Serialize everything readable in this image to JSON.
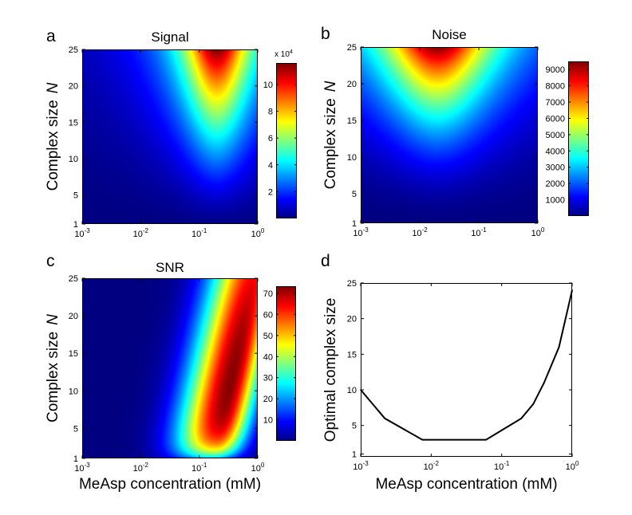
{
  "chart_data": [
    {
      "type": "heatmap",
      "letter": "a",
      "title": "Signal",
      "xlabel": "",
      "ylabel": "Complex size",
      "ylabel_var": "N",
      "x_scale": "log",
      "xlim": [
        0.001,
        1
      ],
      "ylim": [
        1,
        25
      ],
      "x_tick_base": "10",
      "x_tick_exponents": [
        "-3",
        "-2",
        "-1",
        "0"
      ],
      "y_ticks": [
        "1",
        "5",
        "10",
        "15",
        "20",
        "25"
      ],
      "colormap": "jet",
      "colorbar": {
        "range": [
          0,
          116000
        ],
        "ticks": [
          "2",
          "4",
          "6",
          "8",
          "10"
        ],
        "tick_values": [
          20000,
          40000,
          60000,
          80000,
          100000
        ],
        "multiplier_prefix": "x 10",
        "multiplier_exp": "4"
      },
      "peak": {
        "x": 0.2,
        "N": 25,
        "value": 116000
      }
    },
    {
      "type": "heatmap",
      "letter": "b",
      "title": "Noise",
      "xlabel": "",
      "ylabel": "Complex size",
      "ylabel_var": "N",
      "x_scale": "log",
      "xlim": [
        0.001,
        1
      ],
      "ylim": [
        1,
        25
      ],
      "x_tick_base": "10",
      "x_tick_exponents": [
        "-3",
        "-2",
        "-1",
        "0"
      ],
      "y_ticks": [
        "1",
        "5",
        "10",
        "15",
        "20",
        "25"
      ],
      "colormap": "jet",
      "colorbar": {
        "range": [
          0,
          9500
        ],
        "ticks": [
          "1000",
          "2000",
          "3000",
          "4000",
          "5000",
          "6000",
          "7000",
          "8000",
          "9000"
        ],
        "tick_values": [
          1000,
          2000,
          3000,
          4000,
          5000,
          6000,
          7000,
          8000,
          9000
        ]
      },
      "peak": {
        "x": 0.02,
        "N": 25,
        "value": 9500
      }
    },
    {
      "type": "heatmap",
      "letter": "c",
      "title": "SNR",
      "xlabel": "MeAsp concentration (mM)",
      "ylabel": "Complex size",
      "ylabel_var": "N",
      "x_scale": "log",
      "xlim": [
        0.001,
        1
      ],
      "ylim": [
        1,
        25
      ],
      "x_tick_base": "10",
      "x_tick_exponents": [
        "-3",
        "-2",
        "-1",
        "0"
      ],
      "y_ticks": [
        "1",
        "5",
        "10",
        "15",
        "20",
        "25"
      ],
      "colormap": "jet",
      "colorbar": {
        "range": [
          0,
          73.4
        ],
        "ticks": [
          "10",
          "20",
          "30",
          "40",
          "50",
          "60",
          "70"
        ],
        "tick_values": [
          10,
          20,
          30,
          40,
          50,
          60,
          70
        ]
      },
      "peak": {
        "x": 0.45,
        "N": 10,
        "value": 73
      }
    },
    {
      "type": "line",
      "letter": "d",
      "title": "",
      "xlabel": "MeAsp concentration (mM)",
      "ylabel": "Optimal complex size",
      "x_scale": "log",
      "xlim": [
        0.001,
        1
      ],
      "ylim": [
        0.6,
        25
      ],
      "x_tick_base": "10",
      "x_tick_exponents": [
        "-3",
        "-2",
        "-1",
        "0"
      ],
      "y_ticks": [
        "1",
        "5",
        "10",
        "15",
        "20",
        "25"
      ],
      "series": [
        {
          "color": "#000000",
          "x": [
            0.001,
            0.0022,
            0.0075,
            0.06,
            0.19,
            0.28,
            0.4,
            0.65,
            1.0
          ],
          "y": [
            10,
            6,
            3,
            3,
            6,
            8,
            11,
            16,
            24
          ]
        }
      ]
    }
  ]
}
